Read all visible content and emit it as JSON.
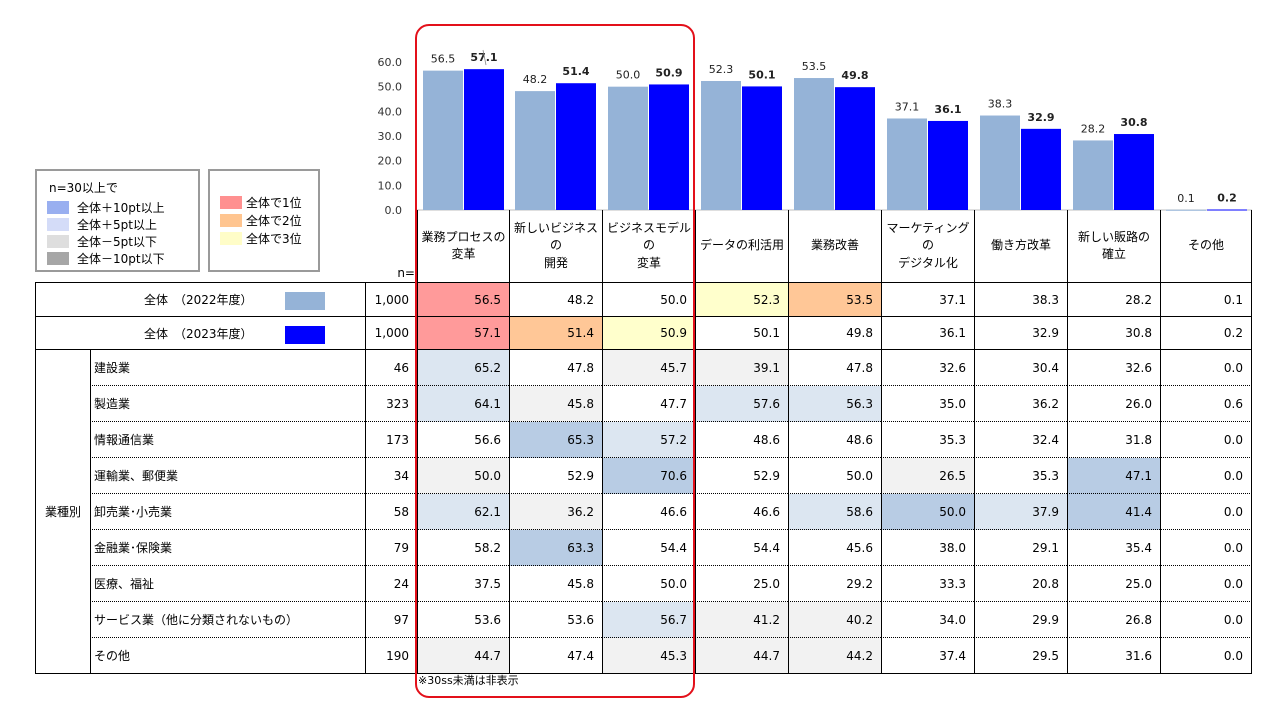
{
  "chart_data": {
    "type": "bar",
    "ylim": [
      0,
      60
    ],
    "yticks": [
      "0.0",
      "10.0",
      "20.0",
      "30.0",
      "40.0",
      "50.0",
      "60.0"
    ],
    "categories": [
      [
        "業務プロセスの",
        "変革"
      ],
      [
        "新しいビジネスの",
        "開発"
      ],
      [
        "ビジネスモデルの",
        "変革"
      ],
      [
        "データの利活用"
      ],
      [
        "業務改善"
      ],
      [
        "マーケティングの",
        "デジタル化"
      ],
      [
        "働き方改革"
      ],
      [
        "新しい販路の",
        "確立"
      ],
      [
        "その他"
      ]
    ],
    "series": [
      {
        "name": "全体　（2022年度）",
        "color": "#95b3d7",
        "values": [
          56.5,
          48.2,
          50.0,
          52.3,
          53.5,
          37.1,
          38.3,
          28.2,
          0.1
        ]
      },
      {
        "name": "全体　（2023年度）",
        "color": "#0000ff",
        "values": [
          57.1,
          51.4,
          50.9,
          50.1,
          49.8,
          36.1,
          32.9,
          30.8,
          0.2
        ]
      }
    ]
  },
  "table": {
    "n_label": "n=",
    "group_label": "業種別",
    "rows": [
      {
        "label": "建設業",
        "n": "46",
        "values": [
          "65.2",
          "47.8",
          "45.7",
          "39.1",
          "47.8",
          "32.6",
          "30.4",
          "32.6",
          "0.0"
        ]
      },
      {
        "label": "製造業",
        "n": "323",
        "values": [
          "64.1",
          "45.8",
          "47.7",
          "57.6",
          "56.3",
          "35.0",
          "36.2",
          "26.0",
          "0.6"
        ]
      },
      {
        "label": "情報通信業",
        "n": "173",
        "values": [
          "56.6",
          "65.3",
          "57.2",
          "48.6",
          "48.6",
          "35.3",
          "32.4",
          "31.8",
          "0.0"
        ]
      },
      {
        "label": "運輸業、郵便業",
        "n": "34",
        "values": [
          "50.0",
          "52.9",
          "70.6",
          "52.9",
          "50.0",
          "26.5",
          "35.3",
          "47.1",
          "0.0"
        ]
      },
      {
        "label": "卸売業･小売業",
        "n": "58",
        "values": [
          "62.1",
          "36.2",
          "46.6",
          "46.6",
          "58.6",
          "50.0",
          "37.9",
          "41.4",
          "0.0"
        ]
      },
      {
        "label": "金融業･保険業",
        "n": "79",
        "values": [
          "58.2",
          "63.3",
          "54.4",
          "54.4",
          "45.6",
          "38.0",
          "29.1",
          "35.4",
          "0.0"
        ]
      },
      {
        "label": "医療、福祉",
        "n": "24",
        "values": [
          "37.5",
          "45.8",
          "50.0",
          "25.0",
          "29.2",
          "33.3",
          "20.8",
          "25.0",
          "0.0"
        ]
      },
      {
        "label": "サービス業（他に分類されないもの）",
        "n": "97",
        "values": [
          "53.6",
          "53.6",
          "56.7",
          "41.2",
          "40.2",
          "34.0",
          "29.9",
          "26.8",
          "0.0"
        ]
      },
      {
        "label": "その他",
        "n": "190",
        "values": [
          "44.7",
          "47.4",
          "45.3",
          "44.7",
          "44.2",
          "37.4",
          "29.5",
          "31.6",
          "0.0"
        ]
      }
    ],
    "total_rows": [
      {
        "label": "全体　（2022年度）",
        "n": "1,000",
        "values": [
          "56.5",
          "48.2",
          "50.0",
          "52.3",
          "53.5",
          "37.1",
          "38.3",
          "28.2",
          "0.1"
        ]
      },
      {
        "label": "全体　（2023年度）",
        "n": "1,000",
        "values": [
          "57.1",
          "51.4",
          "50.9",
          "50.1",
          "49.8",
          "36.1",
          "32.9",
          "30.8",
          "0.2"
        ]
      }
    ]
  },
  "legend": {
    "title": "n=30以上で",
    "items": [
      {
        "label": "全体＋10pt以上",
        "color": "#99aff0"
      },
      {
        "label": "全体＋5pt以上",
        "color": "#d4dcf8"
      },
      {
        "label": "全体－5pt以下",
        "color": "#dedede"
      },
      {
        "label": "全体－10pt以下",
        "color": "#a6a6a6"
      }
    ],
    "rank_items": [
      {
        "label": "全体で1位",
        "color": "#ff9090"
      },
      {
        "label": "全体で2位",
        "color": "#ffc590"
      },
      {
        "label": "全体で3位",
        "color": "#fffdc8"
      }
    ]
  },
  "cell_colors": {
    "plus10": "#b8cce4",
    "plus5": "#dce6f1",
    "minus5": "#f2f2f2",
    "rank1": "#ff9a9a",
    "rank2": "#ffc797",
    "rank3": "#ffffcc"
  },
  "footnote": "※30ss未満は非表示"
}
